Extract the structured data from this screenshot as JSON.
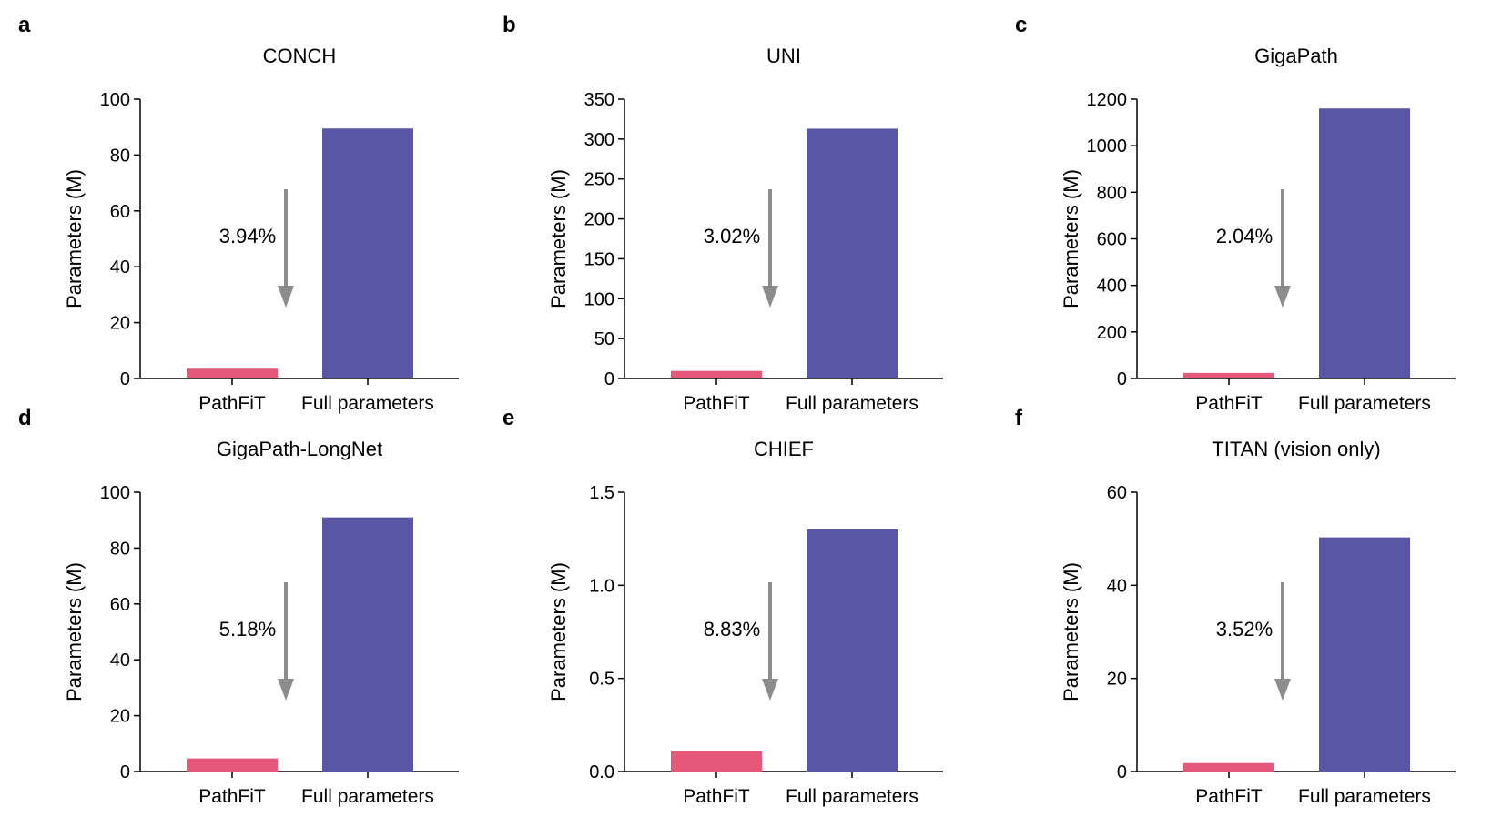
{
  "colors": {
    "pathfit": "#e6587a",
    "full": "#5956a5",
    "arrow": "#8c8c8c",
    "axis": "#000000"
  },
  "chart_data": [
    {
      "type": "bar",
      "panel": "a",
      "title": "CONCH",
      "ylabel": "Parameters (M)",
      "categories": [
        "PathFiT",
        "Full parameters"
      ],
      "values": [
        3.5,
        89.5
      ],
      "ylim": [
        0,
        100
      ],
      "yticks": [
        "0",
        "20",
        "40",
        "60",
        "80",
        "100"
      ],
      "reduction_label": "3.94%"
    },
    {
      "type": "bar",
      "panel": "b",
      "title": "UNI",
      "ylabel": "Parameters (M)",
      "categories": [
        "PathFiT",
        "Full parameters"
      ],
      "values": [
        9.5,
        313
      ],
      "ylim": [
        0,
        350
      ],
      "yticks": [
        "0",
        "50",
        "100",
        "150",
        "200",
        "250",
        "300",
        "350"
      ],
      "reduction_label": "3.02%"
    },
    {
      "type": "bar",
      "panel": "c",
      "title": "GigaPath",
      "ylabel": "Parameters (M)",
      "categories": [
        "PathFiT",
        "Full parameters"
      ],
      "values": [
        24,
        1160
      ],
      "ylim": [
        0,
        1200
      ],
      "yticks": [
        "0",
        "200",
        "400",
        "600",
        "800",
        "1000",
        "1200"
      ],
      "reduction_label": "2.04%"
    },
    {
      "type": "bar",
      "panel": "d",
      "title": "GigaPath-LongNet",
      "ylabel": "Parameters (M)",
      "categories": [
        "PathFiT",
        "Full parameters"
      ],
      "values": [
        4.7,
        91
      ],
      "ylim": [
        0,
        100
      ],
      "yticks": [
        "0",
        "20",
        "40",
        "60",
        "80",
        "100"
      ],
      "reduction_label": "5.18%"
    },
    {
      "type": "bar",
      "panel": "e",
      "title": "CHIEF",
      "ylabel": "Parameters (M)",
      "categories": [
        "PathFiT",
        "Full parameters"
      ],
      "values": [
        0.11,
        1.3
      ],
      "ylim": [
        0,
        1.5
      ],
      "yticks": [
        "0.0",
        "0.5",
        "1.0",
        "1.5"
      ],
      "reduction_label": "8.83%"
    },
    {
      "type": "bar",
      "panel": "f",
      "title": "TITAN (vision only)",
      "ylabel": "Parameters (M)",
      "categories": [
        "PathFiT",
        "Full parameters"
      ],
      "values": [
        1.8,
        50.3
      ],
      "ylim": [
        0,
        60
      ],
      "yticks": [
        "0",
        "20",
        "40",
        "60"
      ],
      "reduction_label": "3.52%"
    }
  ]
}
